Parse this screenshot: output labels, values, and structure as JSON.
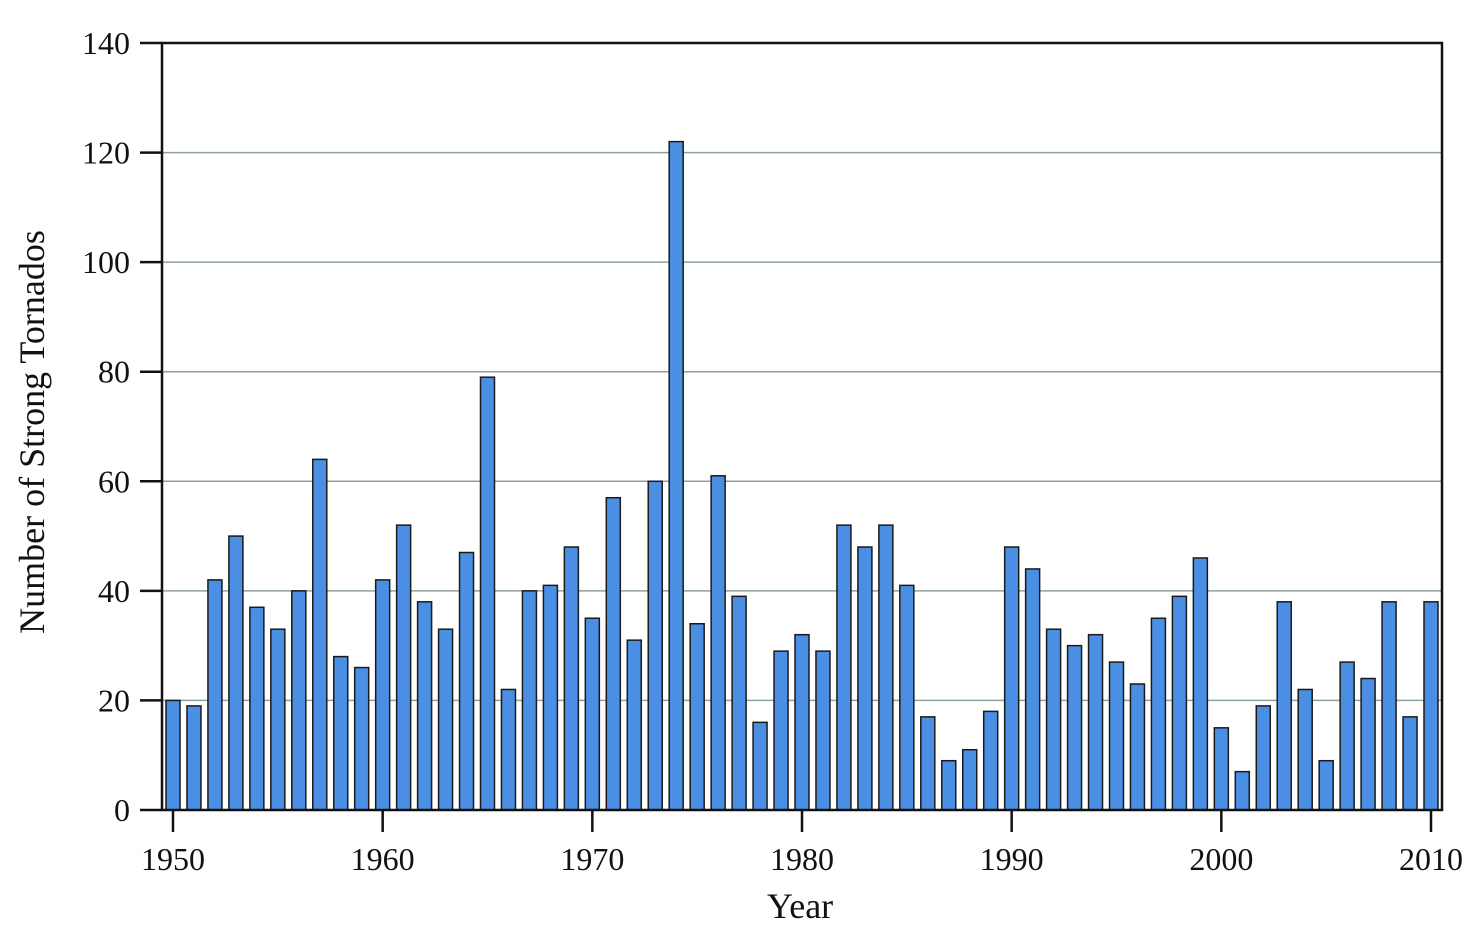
{
  "chart_data": {
    "type": "bar",
    "title": "",
    "xlabel": "Year",
    "ylabel": "Number of Strong Tornados",
    "categories": [
      1950,
      1951,
      1952,
      1953,
      1954,
      1955,
      1956,
      1957,
      1958,
      1959,
      1960,
      1961,
      1962,
      1963,
      1964,
      1965,
      1966,
      1967,
      1968,
      1969,
      1970,
      1971,
      1972,
      1973,
      1974,
      1975,
      1976,
      1977,
      1978,
      1979,
      1980,
      1981,
      1982,
      1983,
      1984,
      1985,
      1986,
      1987,
      1988,
      1989,
      1990,
      1991,
      1992,
      1993,
      1994,
      1995,
      1996,
      1997,
      1998,
      1999,
      2000,
      2001,
      2002,
      2003,
      2004,
      2005,
      2006,
      2007,
      2008,
      2009,
      2010
    ],
    "values": [
      20,
      19,
      42,
      50,
      37,
      33,
      40,
      64,
      28,
      26,
      42,
      52,
      38,
      33,
      47,
      79,
      22,
      40,
      41,
      48,
      35,
      57,
      31,
      60,
      122,
      34,
      61,
      39,
      16,
      29,
      32,
      29,
      52,
      48,
      52,
      41,
      17,
      9,
      11,
      18,
      48,
      44,
      33,
      30,
      32,
      27,
      23,
      35,
      39,
      46,
      15,
      7,
      19,
      38,
      22,
      9,
      27,
      24,
      38,
      17,
      38
    ],
    "xlim": [
      1950,
      2010
    ],
    "ylim": [
      0,
      140
    ],
    "x_ticks": [
      "1950",
      "1960",
      "1970",
      "1980",
      "1990",
      "2000",
      "2010"
    ],
    "y_ticks": [
      "0",
      "20",
      "40",
      "60",
      "80",
      "100",
      "120",
      "140"
    ],
    "grid": "horizontal",
    "colors": {
      "bar": "#4a8fe3",
      "bar_edge": "#1a1a1a",
      "grid": "#8fa0a0",
      "axis": "#111111"
    }
  }
}
